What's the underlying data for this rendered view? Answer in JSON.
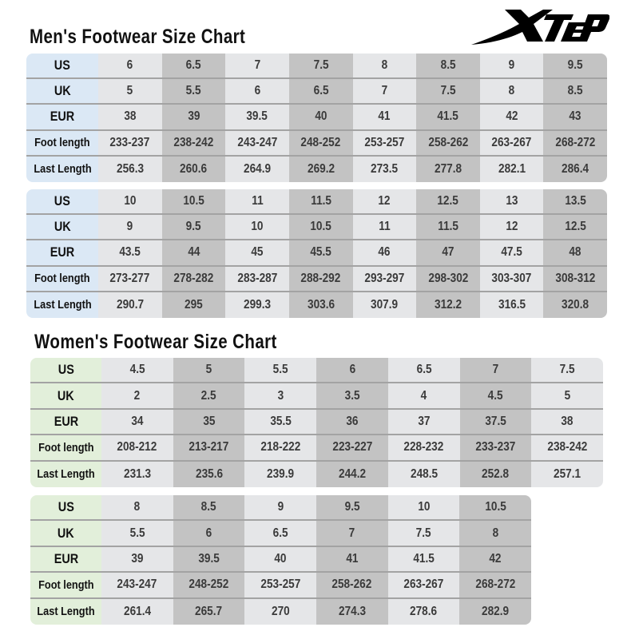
{
  "logo": {
    "text": "XTEP"
  },
  "men": {
    "title": "Men's Footwear Size Chart",
    "row_labels": [
      "US",
      "UK",
      "EUR",
      "Foot length",
      "Last Length"
    ],
    "tables": [
      {
        "columns": [
          [
            "6",
            "5",
            "38",
            "233-237",
            "256.3"
          ],
          [
            "6.5",
            "5.5",
            "39",
            "238-242",
            "260.6"
          ],
          [
            "7",
            "6",
            "39.5",
            "243-247",
            "264.9"
          ],
          [
            "7.5",
            "6.5",
            "40",
            "248-252",
            "269.2"
          ],
          [
            "8",
            "7",
            "41",
            "253-257",
            "273.5"
          ],
          [
            "8.5",
            "7.5",
            "41.5",
            "258-262",
            "277.8"
          ],
          [
            "9",
            "8",
            "42",
            "263-267",
            "282.1"
          ],
          [
            "9.5",
            "8.5",
            "43",
            "268-272",
            "286.4"
          ]
        ]
      },
      {
        "columns": [
          [
            "10",
            "9",
            "43.5",
            "273-277",
            "290.7"
          ],
          [
            "10.5",
            "9.5",
            "44",
            "278-282",
            "295"
          ],
          [
            "11",
            "10",
            "45",
            "283-287",
            "299.3"
          ],
          [
            "11.5",
            "10.5",
            "45.5",
            "288-292",
            "303.6"
          ],
          [
            "12",
            "11",
            "46",
            "293-297",
            "307.9"
          ],
          [
            "12.5",
            "11.5",
            "47",
            "298-302",
            "312.2"
          ],
          [
            "13",
            "12",
            "47.5",
            "303-307",
            "316.5"
          ],
          [
            "13.5",
            "12.5",
            "48",
            "308-312",
            "320.8"
          ]
        ]
      }
    ]
  },
  "women": {
    "title": "Women's Footwear Size Chart",
    "row_labels": [
      "US",
      "UK",
      "EUR",
      "Foot length",
      "Last Length"
    ],
    "tables": [
      {
        "columns": [
          [
            "4.5",
            "2",
            "34",
            "208-212",
            "231.3"
          ],
          [
            "5",
            "2.5",
            "35",
            "213-217",
            "235.6"
          ],
          [
            "5.5",
            "3",
            "35.5",
            "218-222",
            "239.9"
          ],
          [
            "6",
            "3.5",
            "36",
            "223-227",
            "244.2"
          ],
          [
            "6.5",
            "4",
            "37",
            "228-232",
            "248.5"
          ],
          [
            "7",
            "4.5",
            "37.5",
            "233-237",
            "252.8"
          ],
          [
            "7.5",
            "5",
            "38",
            "238-242",
            "257.1"
          ]
        ]
      },
      {
        "columns": [
          [
            "8",
            "5.5",
            "39",
            "243-247",
            "261.4"
          ],
          [
            "8.5",
            "6",
            "39.5",
            "248-252",
            "265.7"
          ],
          [
            "9",
            "6.5",
            "40",
            "253-257",
            "270"
          ],
          [
            "9.5",
            "7",
            "41",
            "258-262",
            "274.3"
          ],
          [
            "10",
            "7.5",
            "41.5",
            "263-267",
            "278.6"
          ],
          [
            "10.5",
            "8",
            "42",
            "268-272",
            "282.9"
          ]
        ]
      }
    ]
  }
}
